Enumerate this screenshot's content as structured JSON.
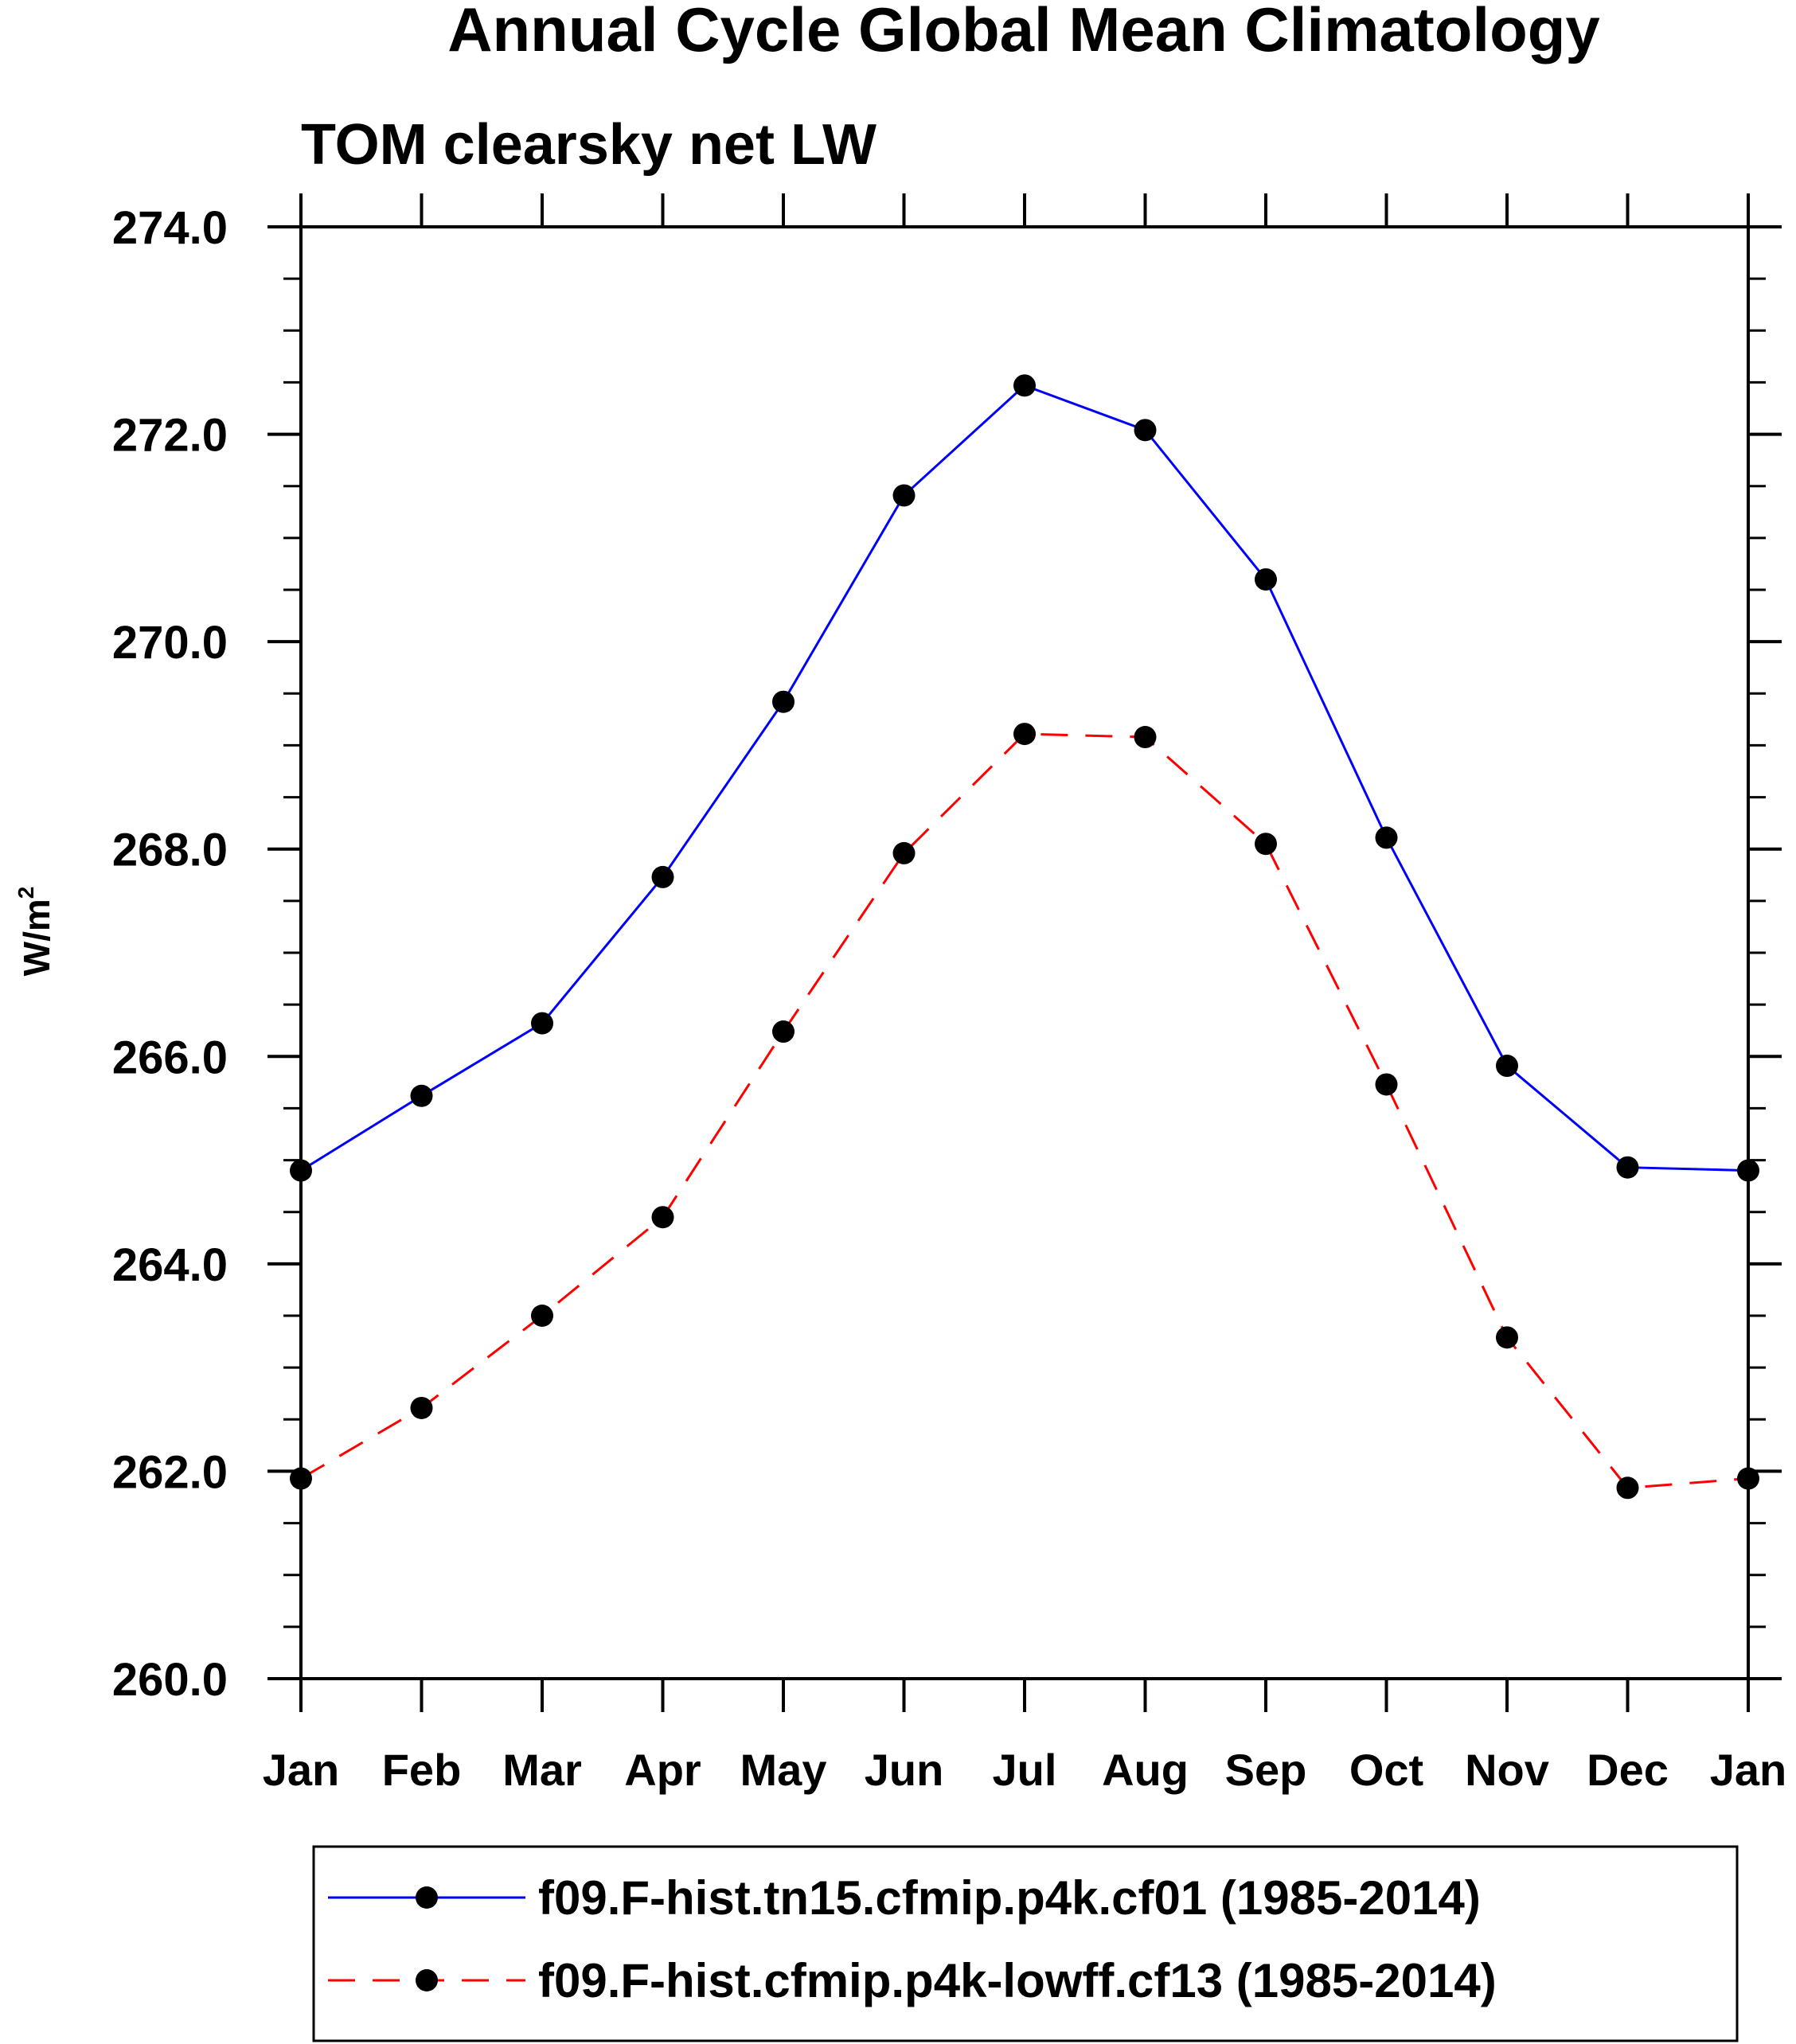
{
  "chart_data": {
    "type": "line",
    "title": "Annual Cycle Global Mean Climatology",
    "subtitle": "TOM clearsky net LW",
    "ylabel": "W/m",
    "ylabel_superscript": "2",
    "xlabel": "",
    "ylim": [
      260,
      274
    ],
    "yticks": [
      "260.0",
      "262.0",
      "264.0",
      "266.0",
      "268.0",
      "270.0",
      "272.0",
      "274.0"
    ],
    "ytick_values": [
      260,
      262,
      264,
      266,
      268,
      270,
      272,
      274
    ],
    "categories": [
      "Jan",
      "Feb",
      "Mar",
      "Apr",
      "May",
      "Jun",
      "Jul",
      "Aug",
      "Sep",
      "Oct",
      "Nov",
      "Dec",
      "Jan"
    ],
    "grid": false,
    "legend_position": "bottom",
    "series": [
      {
        "name": "f09.F-hist.tn15.cfmip.p4k.cf01 (1985-2014)",
        "color": "#0000ff",
        "line_style": "solid",
        "marker": "filled-circle",
        "values": [
          264.9,
          265.62,
          266.32,
          267.73,
          269.42,
          271.41,
          272.47,
          272.04,
          270.6,
          268.11,
          265.91,
          264.93,
          264.9
        ]
      },
      {
        "name": "f09.F-hist.cfmip.p4k-lowff.cf13 (1985-2014)",
        "color": "#ff0000",
        "line_style": "dashed",
        "marker": "filled-circle",
        "values": [
          261.93,
          262.61,
          263.5,
          264.45,
          266.24,
          267.96,
          269.11,
          269.08,
          268.05,
          265.73,
          263.29,
          261.84,
          261.93
        ]
      }
    ]
  }
}
